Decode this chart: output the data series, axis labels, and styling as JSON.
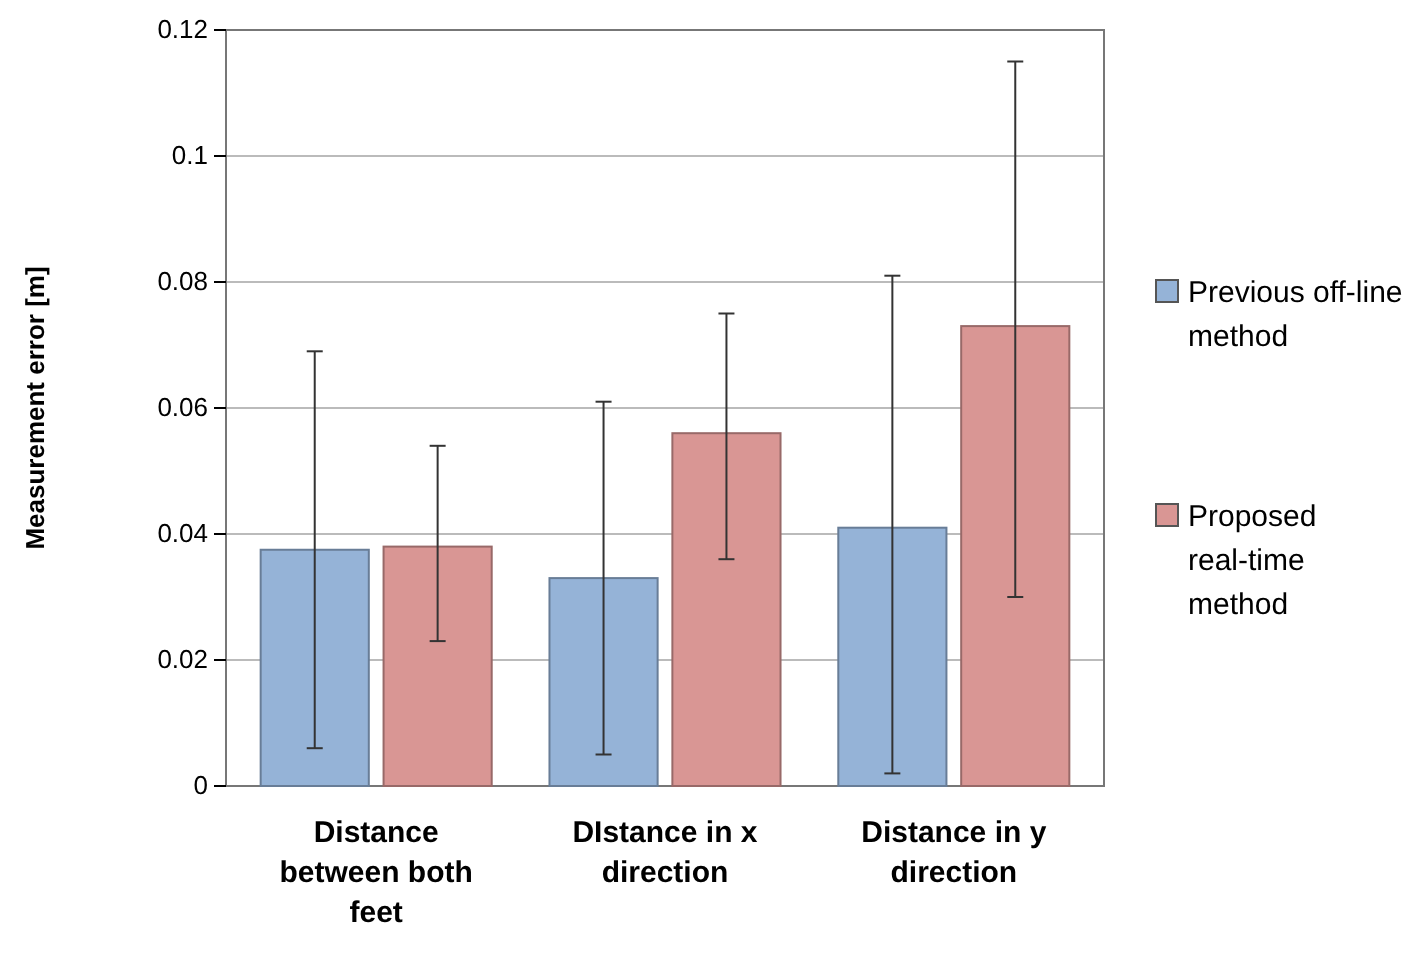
{
  "chart_data": {
    "type": "bar",
    "ylabel": "Measurement error [m]",
    "categories": [
      "Distance between both feet",
      "DIstance in x direction",
      "Distance in y direction"
    ],
    "series": [
      {
        "name": "Previous off-line method",
        "color": "#95b3d7",
        "values": [
          0.0375,
          0.033,
          0.041
        ],
        "errors": [
          [
            0.006,
            0.069
          ],
          [
            0.005,
            0.061
          ],
          [
            0.002,
            0.081
          ]
        ]
      },
      {
        "name": "Proposed real-time method",
        "color": "#d99694",
        "values": [
          0.038,
          0.056,
          0.073
        ],
        "errors": [
          [
            0.023,
            0.054
          ],
          [
            0.036,
            0.075
          ],
          [
            0.03,
            0.115
          ]
        ]
      }
    ],
    "ylim": [
      0,
      0.12
    ],
    "yticks": [
      0,
      0.02,
      0.04,
      0.06,
      0.08,
      0.1,
      0.12
    ],
    "grid": "y",
    "legend": "right"
  }
}
